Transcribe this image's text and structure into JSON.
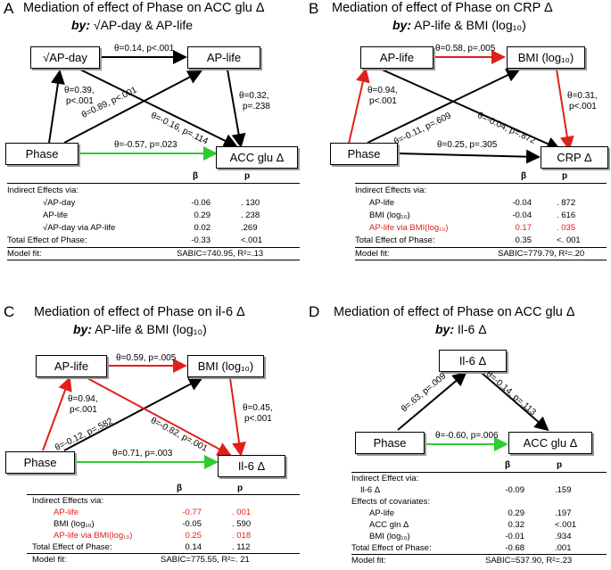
{
  "colors": {
    "black": "#000000",
    "red": "#e0201c",
    "green": "#2ecc2e"
  },
  "panels": {
    "A": {
      "letter": "A",
      "title": "Mediation of effect of Phase on ACC glu Δ",
      "by": "by:",
      "subtitle": "√AP-day & AP-life",
      "nodes": {
        "m1": "√AP-day",
        "m2": "AP-life",
        "x": "Phase",
        "y": "ACC glu Δ"
      },
      "edges": {
        "m1m2": "θ=0.14, p<.001",
        "xm1_a": "θ=0.39,",
        "xm1_b": "p<.001",
        "m2y_a": "θ=0.32,",
        "m2y_b": "p=.238",
        "xm2": "θ=0.89, p<.001",
        "m1y": "θ=-0.16, p=.114",
        "xy": "θ=-0.57, p=.023"
      },
      "head": {
        "b": "β",
        "p": "p"
      },
      "rows": [
        {
          "label": "Indirect Effects via:",
          "b": "",
          "p": ""
        },
        {
          "label": "√AP-day",
          "b": "-0.06",
          "p": ". 130"
        },
        {
          "label": "AP-life",
          "b": "0.29",
          "p": ". 238"
        },
        {
          "label": "√AP-day via AP-life",
          "b": "0.02",
          "p": ".269"
        },
        {
          "label": "Total Effect of Phase:",
          "b": "-0.33",
          "p": "<.001"
        }
      ],
      "fit_label": "Model fit:",
      "fit": "SABIC=740.95, R²=.13"
    },
    "B": {
      "letter": "B",
      "title": "Mediation of effect of Phase on CRP Δ",
      "by": "by:",
      "subtitle": "AP-life & BMI (log₁₀)",
      "nodes": {
        "m1": "AP-life",
        "m2": "BMI (log₁₀)",
        "x": "Phase",
        "y": "CRP Δ"
      },
      "edges": {
        "m1m2": "θ=0.58, p=.005",
        "xm1_a": "θ=0.94,",
        "xm1_b": "p<.001",
        "m2y_a": "θ=0.31,",
        "m2y_b": "p<.001",
        "xm2": "θ=-0.11, p=.609",
        "m1y": "θ=-0.04, p=.872",
        "xy": "θ=0.25, p=.305"
      },
      "head": {
        "b": "β",
        "p": "p"
      },
      "rows": [
        {
          "label": "Indirect Effects via:",
          "b": "",
          "p": ""
        },
        {
          "label": "AP-life",
          "b": "-0.04",
          "p": ". 872"
        },
        {
          "label": "BMI (log₁₀)",
          "b": "-0.04",
          "p": ". 616"
        },
        {
          "label": "AP-life via BMI(log₁₀)",
          "b": "0.17",
          "p": ". 035",
          "red": true
        },
        {
          "label": "Total Effect of Phase:",
          "b": "0.35",
          "p": "<. 001"
        }
      ],
      "fit_label": "Model fit:",
      "fit": "SABIC=779.79, R²=.20"
    },
    "C": {
      "letter": "C",
      "title": "Mediation of effect of Phase on il-6 Δ",
      "by": "by:",
      "subtitle": "AP-life & BMI (log₁₀)",
      "nodes": {
        "m1": "AP-life",
        "m2": "BMI (log₁₀)",
        "x": "Phase",
        "y": "Il-6 Δ"
      },
      "edges": {
        "m1m2": "θ=0.59, p=.005",
        "xm1_a": "θ=0.94,",
        "xm1_b": "p<.001",
        "m2y_a": "θ=0.45,",
        "m2y_b": "p<.001",
        "xm2": "θ=-0.12, p=.582",
        "m1y": "θ=-0.82, p=.001",
        "xy": "θ=0.71, p=.003"
      },
      "head": {
        "b": "β",
        "p": "p"
      },
      "rows": [
        {
          "label": "Indirect Effects via:",
          "b": "",
          "p": ""
        },
        {
          "label": "AP-life",
          "b": "-0.77",
          "p": ". 001",
          "red": true
        },
        {
          "label": "BMI (log₁₀)",
          "b": "-0.05",
          "p": ". 590"
        },
        {
          "label": "AP-life via BMI(log₁₀)",
          "b": "0.25",
          "p": ". 018",
          "red": true
        },
        {
          "label": "Total Effect of Phase:",
          "b": "0.14",
          "p": ". 112"
        }
      ],
      "fit_label": "Model fit:",
      "fit": "SABIC=775.55, R²=. 21"
    },
    "D": {
      "letter": "D",
      "title": "Mediation of effect of Phase on ACC glu Δ",
      "by": "by:",
      "subtitle": "Il-6 Δ",
      "nodes": {
        "m1": "Il-6 Δ",
        "x": "Phase",
        "y": "ACC glu Δ"
      },
      "edges": {
        "xm1": "θ=.63, p=.009",
        "m1y": "θ=-0.14, p=.113",
        "xy": "θ=-0.60, p=.006"
      },
      "head": {
        "b": "β",
        "p": "p"
      },
      "rows": [
        {
          "label": "Indirect Effect via:",
          "b": "",
          "p": ""
        },
        {
          "label": "Il-6 Δ",
          "b": "-0.09",
          "p": ".159"
        },
        {
          "label": "Effects of covariates:",
          "b": "",
          "p": ""
        },
        {
          "label": "AP-life",
          "b": "0.29",
          "p": ".197"
        },
        {
          "label": "ACC gln Δ",
          "b": "0.32",
          "p": "<.001"
        },
        {
          "label": "BMI (log₁₀)",
          "b": "-0.01",
          "p": ".934"
        },
        {
          "label": "Total Effect of Phase:",
          "b": "-0.68",
          "p": ".001"
        }
      ],
      "fit_label": "Model fit:",
      "fit": "SABIC=537.90, R²=.23"
    }
  }
}
